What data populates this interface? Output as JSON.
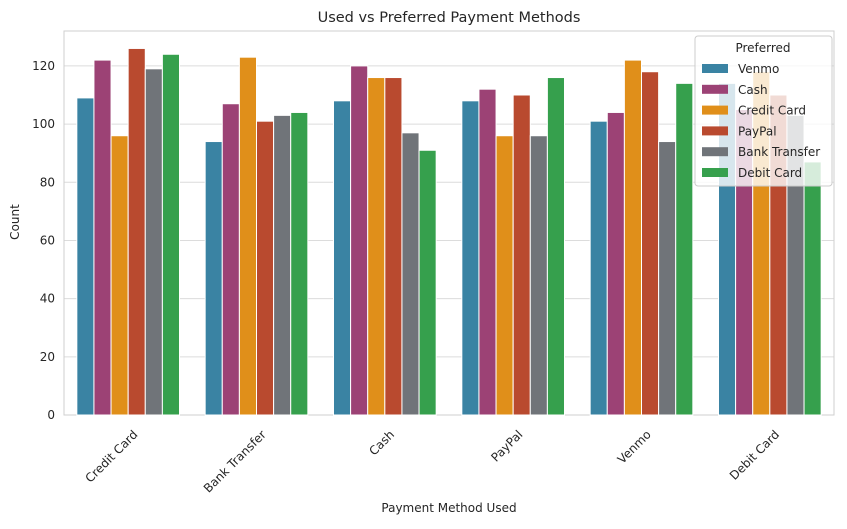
{
  "chart_data": {
    "type": "bar",
    "title": "Used vs Preferred Payment Methods",
    "xlabel": "Payment Method Used",
    "ylabel": "Count",
    "ylim": [
      0,
      132
    ],
    "yticks": [
      0,
      20,
      40,
      60,
      80,
      100,
      120
    ],
    "grid": true,
    "legend_title": "Preferred",
    "legend_position": "top-right",
    "categories": [
      "Credit Card",
      "Bank Transfer",
      "Cash",
      "PayPal",
      "Venmo",
      "Debit Card"
    ],
    "series": [
      {
        "name": "Venmo",
        "color": "#3a83a3",
        "values": [
          109,
          94,
          108,
          108,
          101,
          114
        ]
      },
      {
        "name": "Cash",
        "color": "#9c4275",
        "values": [
          122,
          107,
          120,
          112,
          104,
          105
        ]
      },
      {
        "name": "Credit Card",
        "color": "#e08f1a",
        "values": [
          96,
          123,
          116,
          96,
          122,
          118
        ]
      },
      {
        "name": "PayPal",
        "color": "#b94a2f",
        "values": [
          126,
          101,
          116,
          110,
          118,
          110
        ]
      },
      {
        "name": "Bank Transfer",
        "color": "#707479",
        "values": [
          119,
          103,
          97,
          96,
          94,
          103
        ]
      },
      {
        "name": "Debit Card",
        "color": "#36a04d",
        "values": [
          124,
          104,
          91,
          116,
          114,
          87
        ]
      }
    ]
  }
}
